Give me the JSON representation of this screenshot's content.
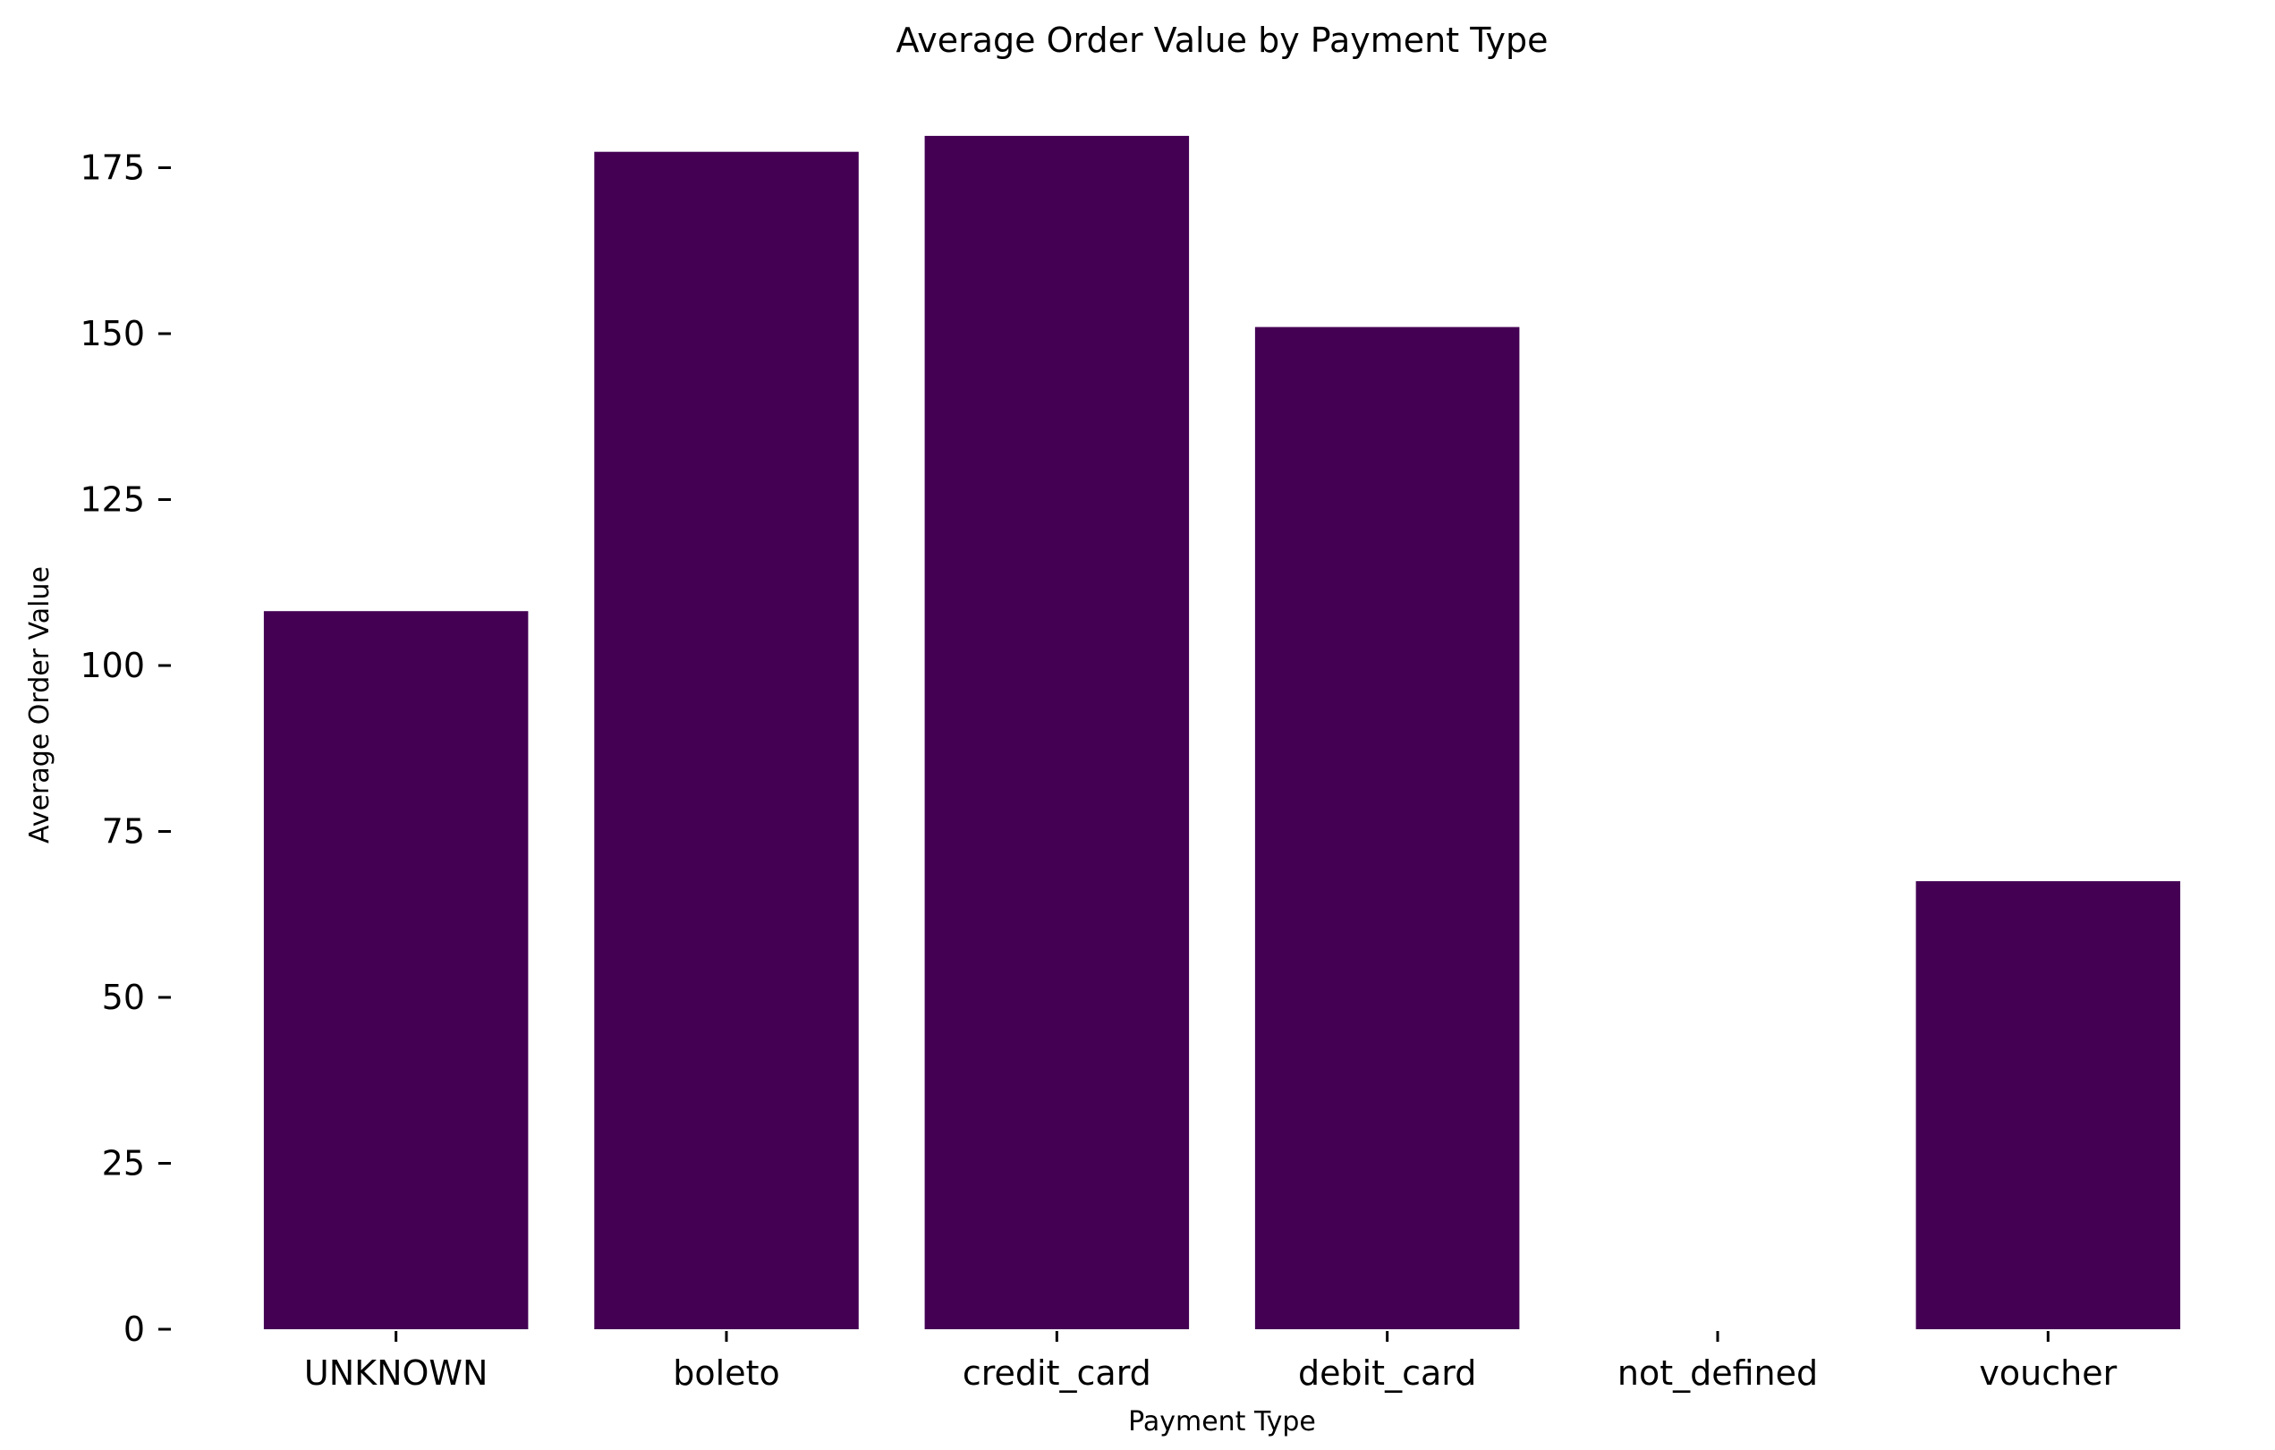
{
  "chart_data": {
    "type": "bar",
    "title": "Average Order Value by Payment Type",
    "xlabel": "Payment Type",
    "ylabel": "Average Order Value",
    "categories": [
      "UNKNOWN",
      "boleto",
      "credit_card",
      "debit_card",
      "not_defined",
      "voucher"
    ],
    "values": [
      108.2,
      177.4,
      179.8,
      151.0,
      0,
      67.5
    ],
    "ylim": [
      0,
      185
    ],
    "yticks": [
      0,
      25,
      50,
      75,
      100,
      125,
      150,
      175
    ],
    "bar_color": "#440154",
    "grid": false,
    "legend": "none"
  }
}
